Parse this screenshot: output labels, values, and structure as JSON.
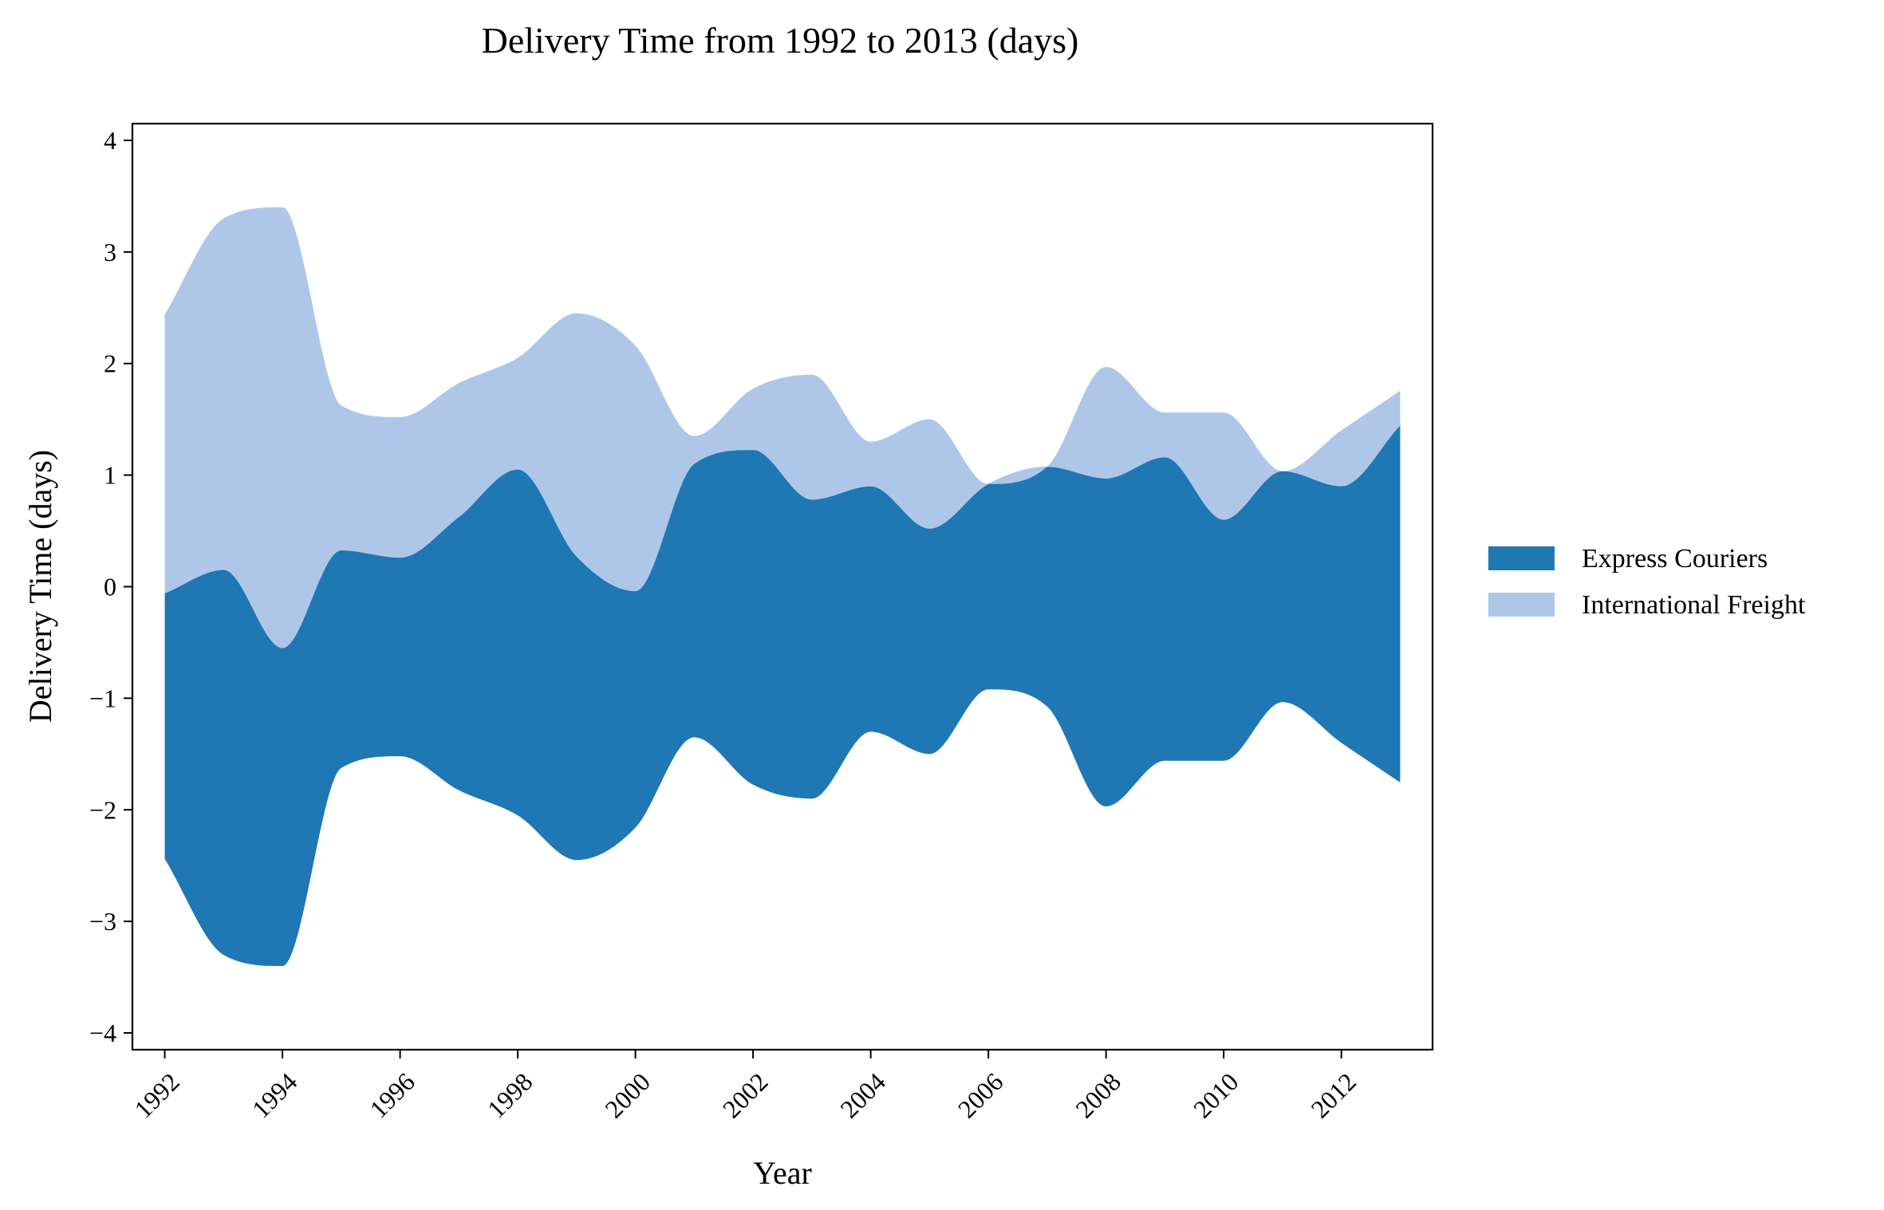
{
  "chart_data": {
    "type": "area",
    "subtype": "streamgraph",
    "title": "Delivery Time from 1992 to 2013 (days)",
    "xlabel": "Year",
    "ylabel": "Delivery Time (days)",
    "x": [
      1992,
      1993,
      1994,
      1995,
      1996,
      1997,
      1998,
      1999,
      2000,
      2001,
      2002,
      2003,
      2004,
      2005,
      2006,
      2007,
      2008,
      2009,
      2010,
      2011,
      2012,
      2013
    ],
    "series": [
      {
        "name": "Express Couriers",
        "color": "#1f77b4",
        "values": [
          2.38,
          3.45,
          2.85,
          1.95,
          1.78,
          2.45,
          3.1,
          2.72,
          2.12,
          2.45,
          3.0,
          2.68,
          2.2,
          2.02,
          1.84,
          2.15,
          2.94,
          2.72,
          2.16,
          2.07,
          2.3,
          3.2
        ]
      },
      {
        "name": "International Freight",
        "color": "#aec7e8",
        "values": [
          2.5,
          3.15,
          3.95,
          1.3,
          1.26,
          1.2,
          1.0,
          2.18,
          2.2,
          0.25,
          0.55,
          1.12,
          0.4,
          0.98,
          0.0,
          0.0,
          1.0,
          0.4,
          0.96,
          0.0,
          0.5,
          0.31
        ]
      }
    ],
    "baseline": "symmetric",
    "xlim": [
      1991.45,
      2013.55
    ],
    "ylim": [
      -4.15,
      4.15
    ],
    "xticks": [
      "1992",
      "1994",
      "1996",
      "1998",
      "2000",
      "2002",
      "2004",
      "2006",
      "2008",
      "2010",
      "2012"
    ],
    "yticks": [
      "−4",
      "−3",
      "−2",
      "−1",
      "0",
      "1",
      "2",
      "3",
      "4"
    ],
    "xtick_rotation": 45,
    "grid": false,
    "legend": {
      "placement": "right",
      "entries": [
        "Express Couriers",
        "International Freight"
      ]
    }
  }
}
